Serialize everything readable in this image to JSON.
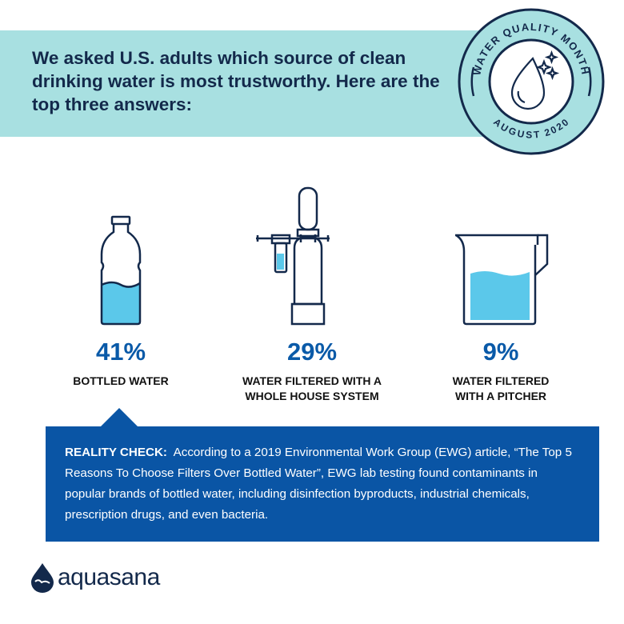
{
  "header": {
    "headline": "We asked U.S. adults which source of clean drinking water is most trustworthy. Here are the top three answers:"
  },
  "badge": {
    "top_text": "WATER QUALITY MONTH",
    "bottom_text": "AUGUST 2020",
    "icon": "water-drop-sparkle-icon"
  },
  "answers": [
    {
      "percent": "41%",
      "label": "BOTTLED WATER",
      "icon": "water-bottle-icon"
    },
    {
      "percent": "29%",
      "label_line1": "WATER FILTERED WITH A",
      "label_line2": "WHOLE HOUSE SYSTEM",
      "icon": "whole-house-filter-icon"
    },
    {
      "percent": "9%",
      "label_line1": "WATER FILTERED",
      "label_line2": "WITH A PITCHER",
      "icon": "pitcher-icon"
    }
  ],
  "reality_check": {
    "title": "REALITY CHECK:",
    "body": "According to a 2019 Environmental Work Group (EWG) article, “The Top 5 Reasons To Choose Filters Over Bottled Water”, EWG lab testing found contaminants in popular brands of bottled water, including disinfection byproducts, industrial chemicals, prescription drugs, and even bacteria."
  },
  "brand": {
    "name": "aquasana"
  },
  "colors": {
    "teal": "#a8e0e1",
    "navy": "#13294b",
    "blue": "#0a55a5",
    "water": "#5bc8ea"
  }
}
